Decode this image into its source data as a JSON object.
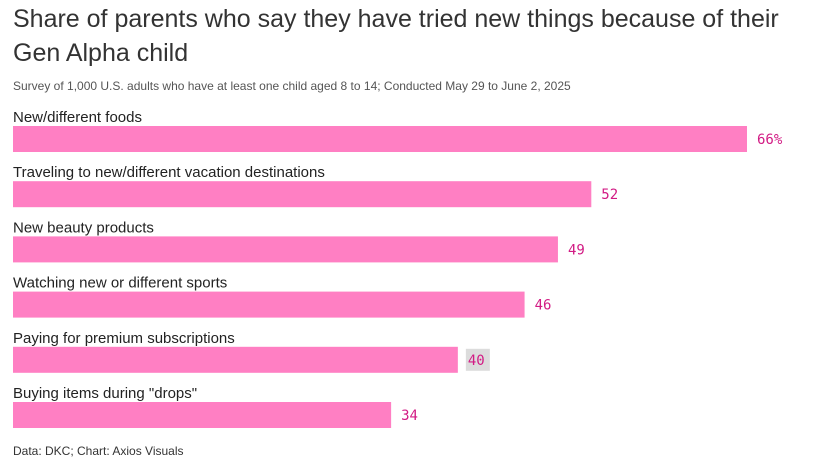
{
  "header": {
    "title": "Share of parents who say they have tried new things because of their Gen Alpha child",
    "subtitle": "Survey of 1,000 U.S. adults who have at least one child aged 8 to 14; Conducted May 29 to June 2, 2025"
  },
  "footer": {
    "source": "Data: DKC; Chart: Axios Visuals"
  },
  "colors": {
    "bar": "#ff7fc3",
    "value_text": "#d21b84",
    "highlight_bg": "#dcdcdc"
  },
  "chart_data": {
    "type": "bar",
    "orientation": "horizontal",
    "categories": [
      "New/different foods",
      "Traveling to new/different vacation destinations",
      "New beauty products",
      "Watching new or different sports",
      "Paying for premium subscriptions",
      "Buying items during \"drops\""
    ],
    "values": [
      66,
      52,
      49,
      46,
      40,
      34
    ],
    "value_labels": [
      "66%",
      "52",
      "49",
      "46",
      "40",
      "34"
    ],
    "highlighted_value_index": 4,
    "title": "Share of parents who say they have tried new things because of their Gen Alpha child",
    "xlim": [
      0,
      66
    ],
    "grid": false,
    "legend": "none"
  }
}
